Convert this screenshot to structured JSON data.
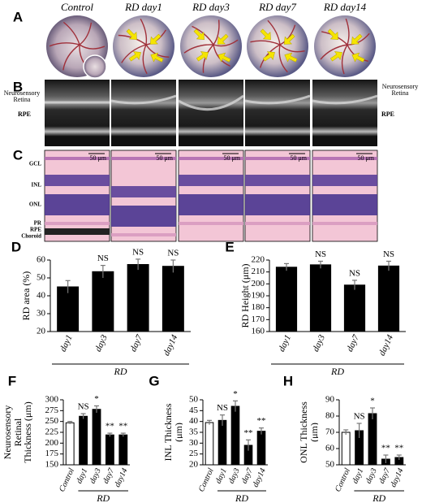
{
  "figure": {
    "panels_top": [
      "A",
      "B",
      "C"
    ],
    "columns": [
      "Control",
      "RD day1",
      "RD day3",
      "RD day7",
      "RD day14"
    ],
    "oct_labels": {
      "left_retina": "Neurosensory Retina",
      "left_rpe": "RPE",
      "right_retina": "Neurosensory Retina",
      "right_rpe": "RPE"
    },
    "histology_layers": [
      "GCL",
      "INL",
      "ONL",
      "PR",
      "RPE",
      "Choroid"
    ],
    "scale_bar": "50 μm"
  },
  "chart_data": [
    {
      "type": "bar",
      "panel": "D",
      "ylabel": "RD area (%)",
      "categories": [
        "day1",
        "day3",
        "day7",
        "day14"
      ],
      "values": [
        45,
        53.5,
        57.5,
        56.5
      ],
      "errors": [
        3.5,
        3.5,
        3,
        3.5
      ],
      "annotations": [
        null,
        "NS",
        "NS",
        "NS"
      ],
      "colors": [
        "#000000",
        "#000000",
        "#000000",
        "#000000"
      ],
      "group_label": "RD",
      "ylim": [
        20,
        60
      ],
      "yticks": [
        20,
        30,
        40,
        50,
        60
      ]
    },
    {
      "type": "bar",
      "panel": "E",
      "ylabel": "RD Height (μm)",
      "categories": [
        "day1",
        "day3",
        "day7",
        "day14"
      ],
      "values": [
        214,
        216,
        199,
        215
      ],
      "errors": [
        3,
        3,
        4,
        4
      ],
      "annotations": [
        null,
        "NS",
        "NS",
        "NS"
      ],
      "colors": [
        "#000000",
        "#000000",
        "#000000",
        "#000000"
      ],
      "group_label": "RD",
      "ylim": [
        160,
        220
      ],
      "yticks": [
        160,
        170,
        180,
        190,
        200,
        210,
        220
      ]
    },
    {
      "type": "bar",
      "panel": "F",
      "ylabel": "Neurosensory Retinal Thickness (μm)",
      "categories": [
        "Control",
        "day1",
        "day3",
        "day7",
        "day14"
      ],
      "values": [
        247,
        262,
        278,
        219,
        219
      ],
      "errors": [
        3,
        6,
        8,
        4,
        4
      ],
      "annotations": [
        null,
        "NS",
        "*",
        "**",
        "**"
      ],
      "colors": [
        "#ffffff",
        "#000000",
        "#000000",
        "#000000",
        "#000000"
      ],
      "group_label": "RD",
      "ylim": [
        150,
        300
      ],
      "yticks": [
        150,
        175,
        200,
        225,
        250,
        275,
        300
      ]
    },
    {
      "type": "bar",
      "panel": "G",
      "ylabel": "INL Thickness (μm)",
      "categories": [
        "Control",
        "day1",
        "day3",
        "day7",
        "day14"
      ],
      "values": [
        39.5,
        40.5,
        47,
        29,
        35.5
      ],
      "errors": [
        1,
        2.5,
        2.5,
        2.5,
        1.5
      ],
      "annotations": [
        null,
        "NS",
        "*",
        "**",
        "**"
      ],
      "colors": [
        "#ffffff",
        "#000000",
        "#000000",
        "#000000",
        "#000000"
      ],
      "group_label": "RD",
      "ylim": [
        20,
        50
      ],
      "yticks": [
        20,
        25,
        30,
        35,
        40,
        45,
        50
      ]
    },
    {
      "type": "bar",
      "panel": "H",
      "ylabel": "ONL Thickness (μm)",
      "categories": [
        "Control",
        "day1",
        "day3",
        "day7",
        "day14"
      ],
      "values": [
        70,
        71,
        81.5,
        53.5,
        54.5
      ],
      "errors": [
        1.5,
        4.5,
        3.5,
        2.5,
        1.5
      ],
      "annotations": [
        null,
        "NS",
        "*",
        "**",
        "**"
      ],
      "colors": [
        "#ffffff",
        "#000000",
        "#000000",
        "#000000",
        "#000000"
      ],
      "group_label": "RD",
      "ylim": [
        50,
        90
      ],
      "yticks": [
        50,
        60,
        70,
        80,
        90
      ]
    }
  ]
}
